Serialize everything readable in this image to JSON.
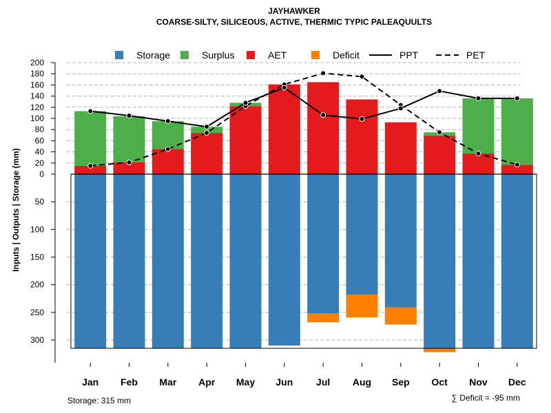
{
  "chart_data": {
    "type": "bar",
    "title": "JAYHAWKER",
    "subtitle": "COARSE-SILTY, SILICEOUS, ACTIVE, THERMIC TYPIC PALEAQUULTS",
    "ylabel": "Inputs | Outputs | Storage    (mm)",
    "categories": [
      "Jan",
      "Feb",
      "Mar",
      "Apr",
      "May",
      "Jun",
      "Jul",
      "Aug",
      "Sep",
      "Oct",
      "Nov",
      "Dec"
    ],
    "upper_ylim": [
      0,
      200
    ],
    "upper_ticks": [
      "200",
      "180",
      "160",
      "140",
      "120",
      "100",
      "80",
      "60",
      "40",
      "20",
      "0"
    ],
    "lower_ylim": [
      0,
      315
    ],
    "lower_ticks": [
      "50",
      "100",
      "150",
      "200",
      "250",
      "300"
    ],
    "legend": [
      {
        "label": "Storage",
        "color": "#377EB8",
        "kind": "box"
      },
      {
        "label": "Surplus",
        "color": "#4DAF4A",
        "kind": "box"
      },
      {
        "label": "AET",
        "color": "#E41A1C",
        "kind": "box"
      },
      {
        "label": "Deficit",
        "color": "#FF7F00",
        "kind": "box"
      },
      {
        "label": "PPT",
        "color": "#000000",
        "kind": "line"
      },
      {
        "label": "PET",
        "color": "#000000",
        "kind": "dash"
      }
    ],
    "series": [
      {
        "name": "AET",
        "color": "#E41A1C",
        "values": [
          15,
          21,
          45,
          74,
          122,
          161,
          165,
          134,
          93,
          69,
          37,
          17
        ]
      },
      {
        "name": "Surplus",
        "color": "#4DAF4A",
        "values": [
          98,
          83,
          50,
          11,
          6,
          0,
          0,
          0,
          0,
          6,
          99,
          119
        ]
      },
      {
        "name": "PPT",
        "color": "#000000",
        "values": [
          113,
          105,
          95,
          85,
          128,
          155,
          106,
          99,
          118,
          149,
          136,
          136
        ]
      },
      {
        "name": "PET",
        "color": "#000000",
        "values": [
          15,
          21,
          45,
          74,
          122,
          161,
          181,
          175,
          124,
          75,
          37,
          17
        ]
      },
      {
        "name": "Storage",
        "color": "#377EB8",
        "values": [
          315,
          315,
          315,
          315,
          315,
          310,
          252,
          218,
          241,
          315,
          315,
          315
        ]
      },
      {
        "name": "Deficit",
        "color": "#FF7F00",
        "values": [
          0,
          0,
          0,
          0,
          0,
          0,
          16,
          41,
          31,
          7,
          0,
          0
        ]
      }
    ],
    "notes": {
      "storage": "Storage: 315 mm",
      "deficit": "∑ Deficit = -95 mm"
    }
  }
}
